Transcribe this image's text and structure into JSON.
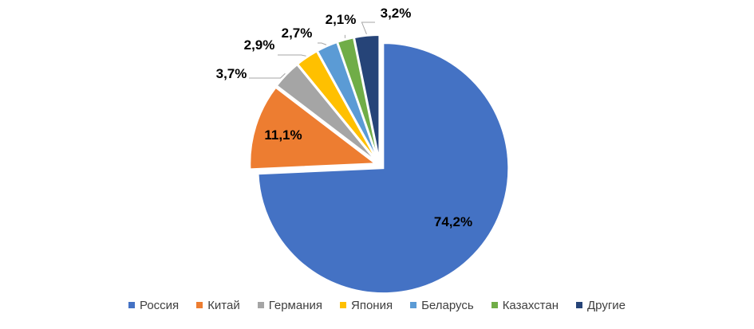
{
  "chart_data": {
    "type": "pie",
    "slices": [
      {
        "label": "Россия",
        "value": 74.2,
        "display": "74,2%",
        "color": "#4472C4"
      },
      {
        "label": "Китай",
        "value": 11.1,
        "display": "11,1%",
        "color": "#ED7D31"
      },
      {
        "label": "Германия",
        "value": 3.7,
        "display": "3,7%",
        "color": "#A5A5A5"
      },
      {
        "label": "Япония",
        "value": 2.9,
        "display": "2,9%",
        "color": "#FFC000"
      },
      {
        "label": "Беларусь",
        "value": 2.7,
        "display": "2,7%",
        "color": "#5B9BD5"
      },
      {
        "label": "Казахстан",
        "value": 2.1,
        "display": "2,1%",
        "color": "#70AD47"
      },
      {
        "label": "Другие",
        "value": 3.2,
        "display": "3,2%",
        "color": "#264478"
      }
    ],
    "start_angle": "12 o'clock",
    "direction": "clockwise",
    "exploded": true,
    "legend_position": "bottom",
    "title": ""
  }
}
